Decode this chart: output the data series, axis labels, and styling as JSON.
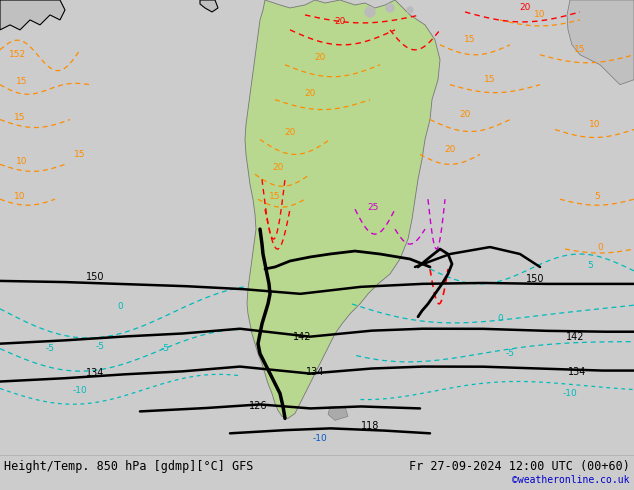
{
  "title_left": "Height/Temp. 850 hPa [gdmp][°C] GFS",
  "title_right": "Fr 27-09-2024 12:00 UTC (00+60)",
  "credit": "©weatheronline.co.uk",
  "bg_color": "#cccccc",
  "land_color_green": "#b8d890",
  "land_color_gray": "#c8c8c8",
  "ocean_color": "#cccccc",
  "fig_width": 6.34,
  "fig_height": 4.9,
  "dpi": 100,
  "orange": "#ff8c00",
  "red": "#ff0000",
  "magenta": "#cc00cc",
  "cyan": "#00bbbb",
  "teal": "#008888",
  "darkblue": "#0000bb",
  "black": "#000000",
  "title_fontsize": 8.5,
  "credit_fontsize": 7,
  "credit_color": "#0000cc",
  "label_fs": 6.5
}
